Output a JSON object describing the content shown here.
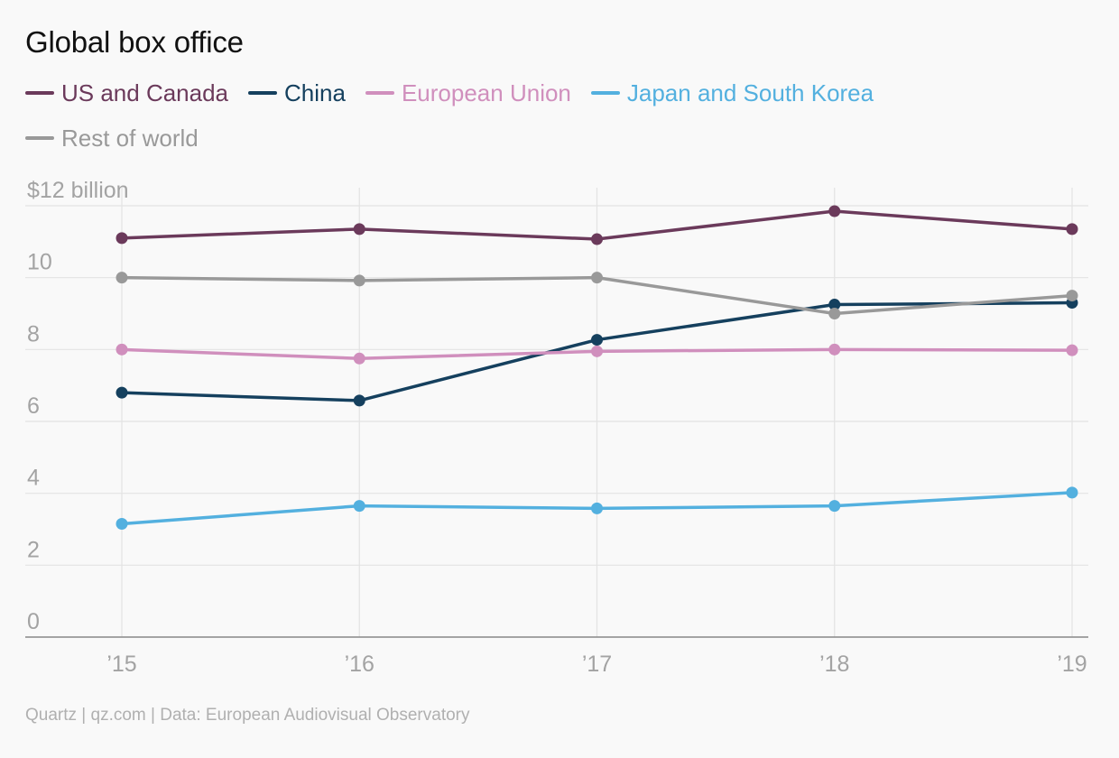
{
  "chart_data": {
    "type": "line",
    "title": "Global box office",
    "x": [
      "’15",
      "’16",
      "’17",
      "’18",
      "’19"
    ],
    "y_ticks": [
      "0",
      "2",
      "4",
      "6",
      "8",
      "10",
      "$12 billion"
    ],
    "ylim": [
      0,
      12
    ],
    "grid": true,
    "legend_position": "top-left",
    "series": [
      {
        "name": "US and Canada",
        "color": "#6b3a5b",
        "values": [
          11.1,
          11.35,
          11.07,
          11.85,
          11.35
        ]
      },
      {
        "name": "China",
        "color": "#15405e",
        "values": [
          6.8,
          6.58,
          8.27,
          9.25,
          9.3
        ]
      },
      {
        "name": "European Union",
        "color": "#d08fbd",
        "values": [
          8.0,
          7.75,
          7.95,
          8.0,
          7.98
        ]
      },
      {
        "name": "Japan and South Korea",
        "color": "#53b0df",
        "values": [
          3.15,
          3.65,
          3.58,
          3.65,
          4.02
        ]
      },
      {
        "name": "Rest of world",
        "color": "#999999",
        "values": [
          10.0,
          9.92,
          10.0,
          9.0,
          9.5
        ]
      }
    ]
  },
  "footer": "Quartz | qz.com | Data: European Audiovisual Observatory"
}
